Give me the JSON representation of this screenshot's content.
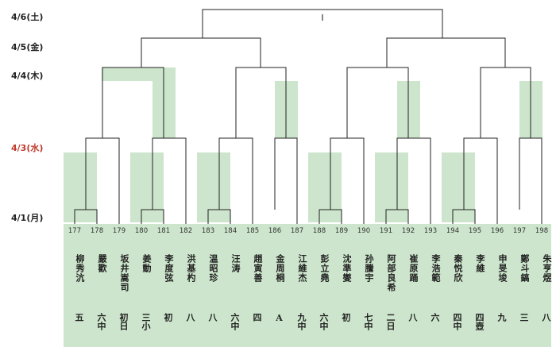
{
  "dates": [
    "4/6(土)",
    "4/5(金)",
    "4/4(木)",
    "4/3(水)",
    "4/1(月)"
  ],
  "final_label": "I",
  "players": [
    {
      "num": "177",
      "name": "柳秀沆",
      "rank": "五"
    },
    {
      "num": "178",
      "name": "嚴歡",
      "rank": "六中"
    },
    {
      "num": "179",
      "name": "坂井嵩司",
      "rank": "初日"
    },
    {
      "num": "180",
      "name": "姜動",
      "rank": "三小"
    },
    {
      "num": "181",
      "name": "李度弦",
      "rank": "初"
    },
    {
      "num": "182",
      "name": "洪基杓",
      "rank": "八"
    },
    {
      "num": "183",
      "name": "温昭珍",
      "rank": "八"
    },
    {
      "num": "184",
      "name": "汪涛",
      "rank": "六中"
    },
    {
      "num": "185",
      "name": "趙寅善",
      "rank": "四"
    },
    {
      "num": "186",
      "name": "金周桐",
      "rank": "A"
    },
    {
      "num": "187",
      "name": "江維杰",
      "rank": "九中"
    },
    {
      "num": "188",
      "name": "彭立堯",
      "rank": "六中"
    },
    {
      "num": "189",
      "name": "沈準燮",
      "rank": "初"
    },
    {
      "num": "190",
      "name": "孙騰宇",
      "rank": "七中"
    },
    {
      "num": "191",
      "name": "阿部良希",
      "rank": "二日"
    },
    {
      "num": "192",
      "name": "崔原踊",
      "rank": "八"
    },
    {
      "num": "193",
      "name": "李浩範",
      "rank": "六"
    },
    {
      "num": "194",
      "name": "秦悦欣",
      "rank": "四中"
    },
    {
      "num": "195",
      "name": "李維",
      "rank": "四壺"
    },
    {
      "num": "196",
      "name": "申旻埈",
      "rank": "九"
    },
    {
      "num": "197",
      "name": "鄭斗鎬",
      "rank": "三"
    },
    {
      "num": "198",
      "name": "朱亨煜",
      "rank": "八"
    }
  ],
  "colors": {
    "panel": "#cce5cc",
    "line": "#222222",
    "highlight_date": "#c0392b"
  }
}
